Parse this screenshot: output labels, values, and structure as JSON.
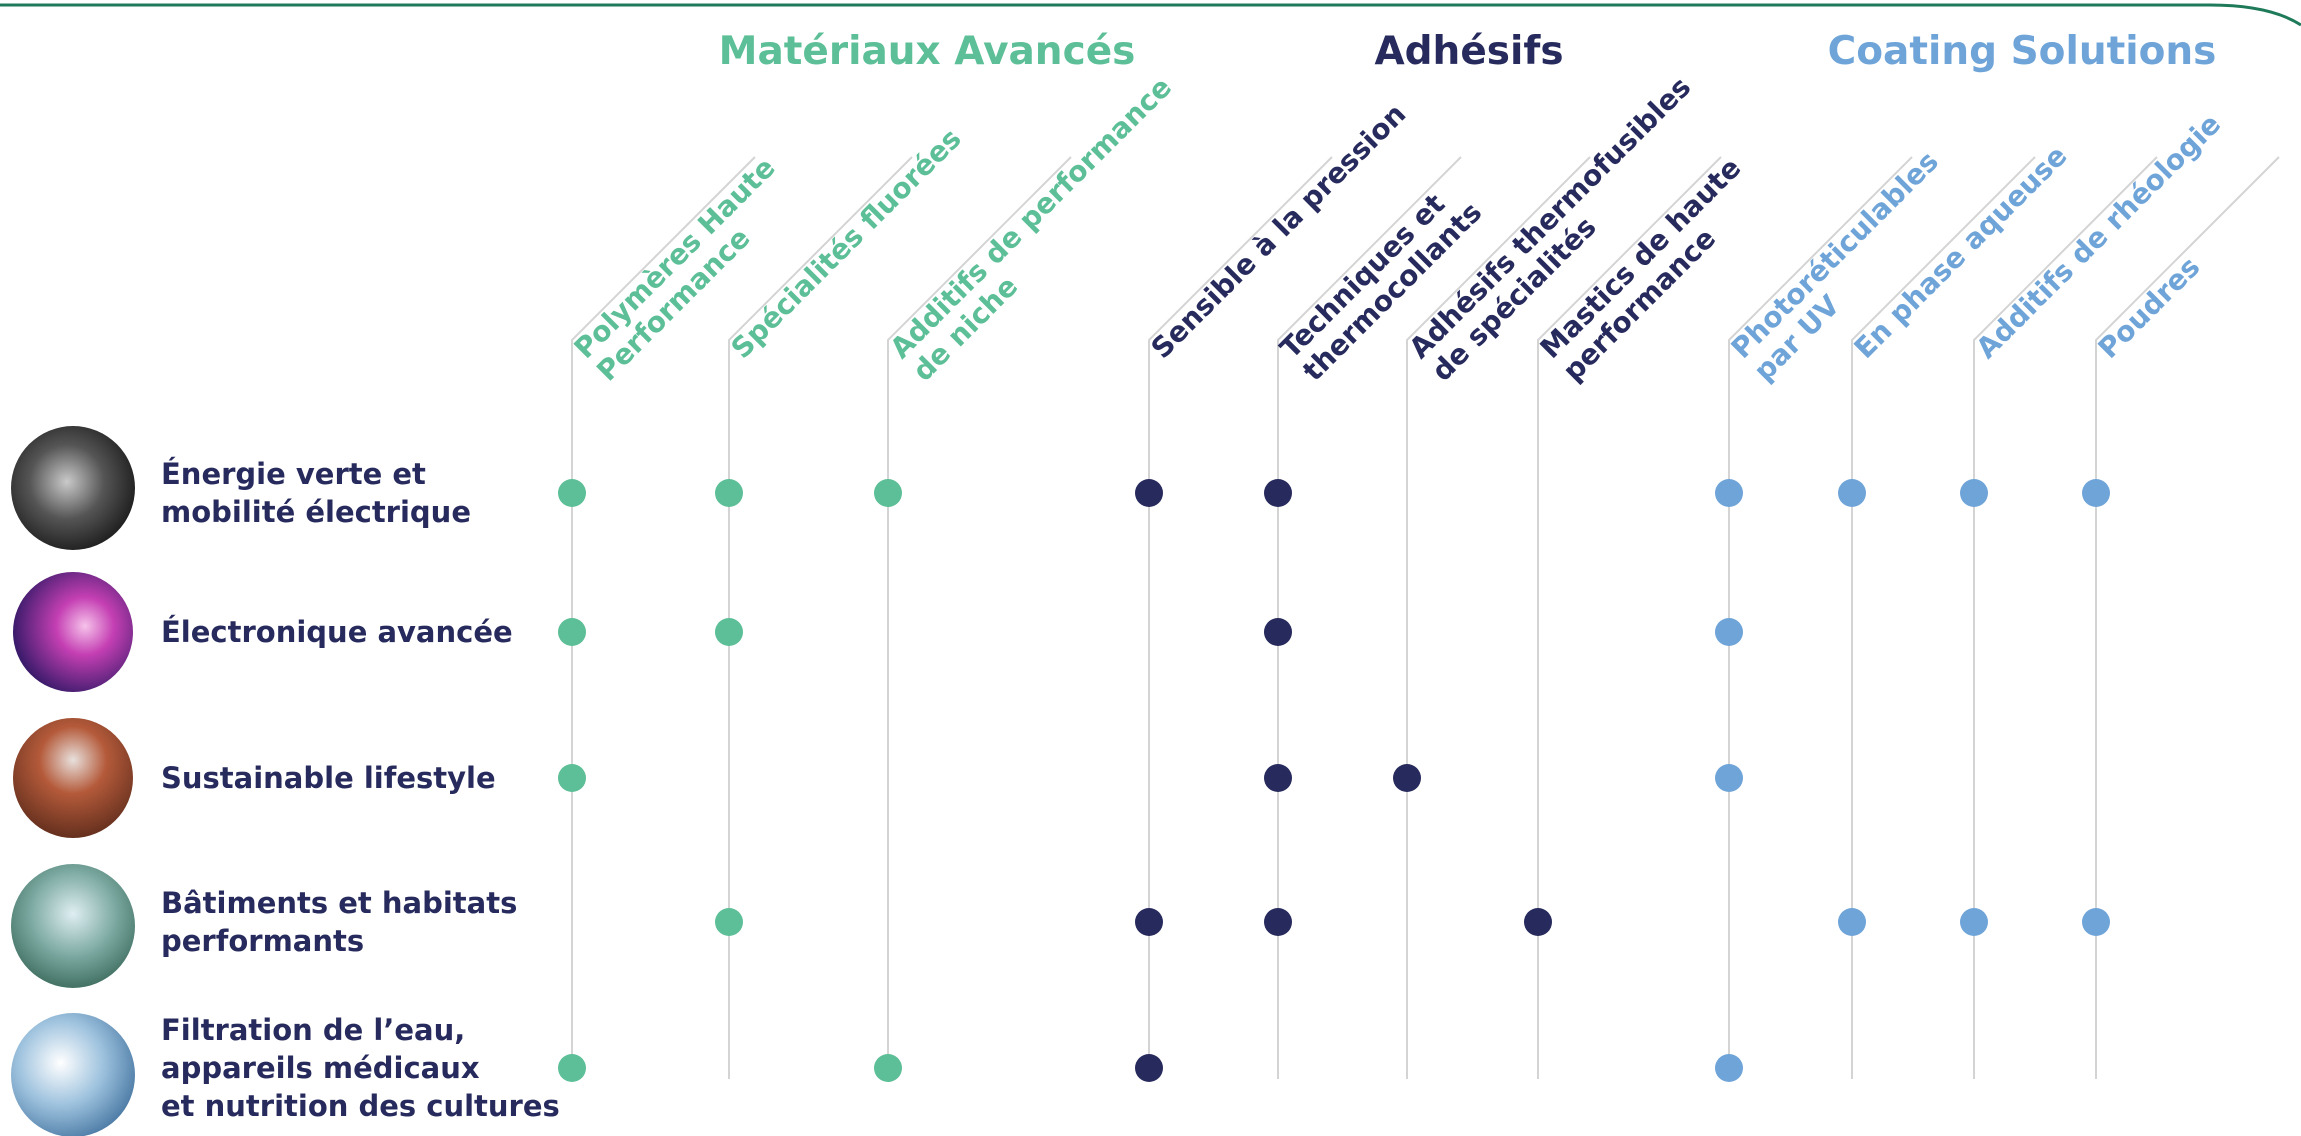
{
  "groups": [
    {
      "title": "Matériaux Avancés",
      "color": "#5cbf97",
      "columns": [
        {
          "lines": [
            "Polymères Haute",
            "Performance"
          ]
        },
        {
          "lines": [
            "Spécialités fluorées"
          ]
        },
        {
          "lines": [
            "Additifs de performance",
            "de niche"
          ]
        }
      ]
    },
    {
      "title": "Adhésifs",
      "color": "#272a5c",
      "columns": [
        {
          "lines": [
            "Sensible à la pression"
          ]
        },
        {
          "lines": [
            "Techniques et",
            "thermocollants"
          ]
        },
        {
          "lines": [
            "Adhésifs thermofusibles",
            "de spécialités"
          ]
        },
        {
          "lines": [
            "Mastics de haute",
            "performance"
          ]
        }
      ]
    },
    {
      "title": "Coating Solutions",
      "color": "#6fa4d8",
      "columns": [
        {
          "lines": [
            "Photoréticulables",
            "par UV"
          ]
        },
        {
          "lines": [
            "En phase aqueuse"
          ]
        },
        {
          "lines": [
            "Additifs de rhéologie"
          ]
        },
        {
          "lines": [
            "Poudres"
          ]
        }
      ]
    }
  ],
  "rows": [
    {
      "lines": [
        "Énergie verte et",
        "mobilité électrique"
      ],
      "dots": [
        true,
        true,
        true,
        true,
        true,
        false,
        false,
        true,
        true,
        true,
        true
      ]
    },
    {
      "lines": [
        "Électronique avancée"
      ],
      "dots": [
        true,
        true,
        false,
        false,
        true,
        false,
        false,
        true,
        false,
        false,
        false
      ]
    },
    {
      "lines": [
        "Sustainable lifestyle"
      ],
      "dots": [
        true,
        false,
        false,
        false,
        true,
        true,
        false,
        true,
        false,
        false,
        false
      ]
    },
    {
      "lines": [
        "Bâtiments et habitats",
        "performants"
      ],
      "dots": [
        false,
        true,
        false,
        true,
        true,
        false,
        true,
        false,
        true,
        true,
        true
      ]
    },
    {
      "lines": [
        "Filtration de l’eau,",
        "appareils médicaux",
        "et nutrition des cultures"
      ],
      "dots": [
        true,
        false,
        true,
        true,
        false,
        false,
        false,
        true,
        false,
        false,
        false
      ]
    }
  ]
}
